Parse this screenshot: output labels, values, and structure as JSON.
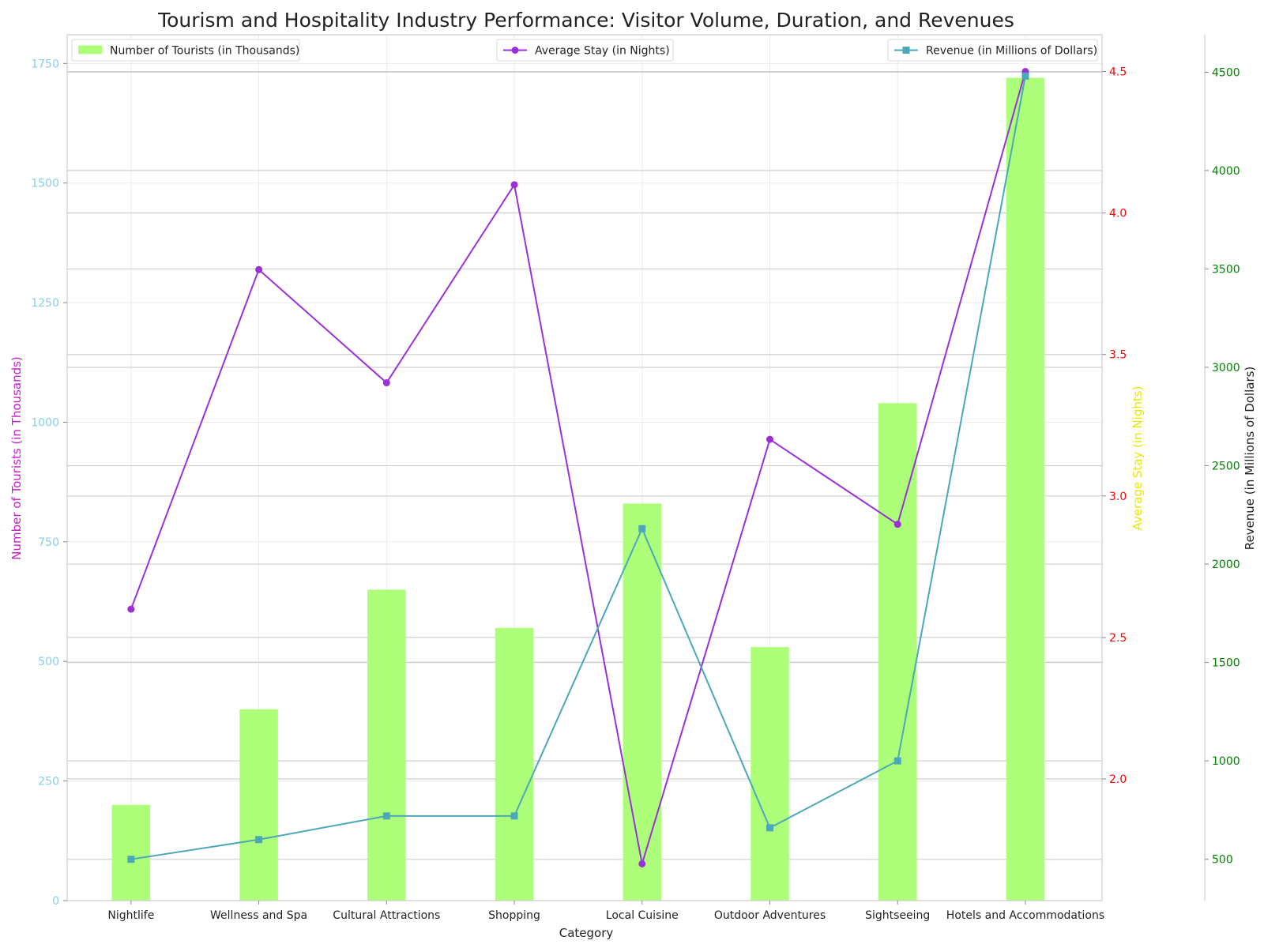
{
  "chart_data": {
    "type": "bar",
    "title": "Tourism and Hospitality Industry Performance: Visitor Volume, Duration, and Revenues",
    "xlabel": "Category",
    "categories": [
      "Nightlife",
      "Wellness and Spa",
      "Cultural Attractions",
      "Shopping",
      "Local Cuisine",
      "Outdoor Adventures",
      "Sightseeing",
      "Hotels and Accommodations"
    ],
    "grid": true,
    "series": [
      {
        "name": "Number of Tourists (in Thousands)",
        "type": "bar",
        "axis": "left",
        "color": "#adff7a",
        "values": [
          200,
          400,
          650,
          570,
          830,
          530,
          1040,
          1720
        ]
      },
      {
        "name": "Average Stay (in Nights)",
        "type": "line",
        "axis": "right",
        "color": "#9b30d9",
        "marker": "circle",
        "values": [
          2.6,
          3.8,
          3.4,
          4.1,
          1.7,
          3.2,
          2.9,
          4.5
        ]
      },
      {
        "name": "Revenue (in Millions of Dollars)",
        "type": "line",
        "axis": "right2",
        "color": "#4aa8b8",
        "marker": "square",
        "values": [
          500,
          600,
          720,
          720,
          2180,
          660,
          1000,
          4480
        ]
      }
    ],
    "axes": {
      "left": {
        "label": "Number of Tourists (in Thousands)",
        "label_color": "#c71ccd",
        "tick_color": "#87ceeb",
        "ylim": [
          0,
          1810
        ],
        "ticks": [
          0,
          250,
          500,
          750,
          1000,
          1250,
          1500,
          1750
        ]
      },
      "right": {
        "label": "Average Stay (in Nights)",
        "label_color": "#e8e800",
        "tick_color": "#ff0000",
        "ylim": [
          1.57,
          4.63
        ],
        "ticks": [
          2.0,
          2.5,
          3.0,
          3.5,
          4.0,
          4.5
        ]
      },
      "right2": {
        "label": "Revenue (in Millions of Dollars)",
        "label_color": "#222222",
        "tick_color": "#008000",
        "ylim": [
          290,
          4690
        ],
        "ticks": [
          500,
          1000,
          1500,
          2000,
          2500,
          3000,
          3500,
          4000,
          4500
        ]
      }
    },
    "legends": [
      {
        "series": "Number of Tourists (in Thousands)",
        "placement": "top-left"
      },
      {
        "series": "Average Stay (in Nights)",
        "placement": "top-center"
      },
      {
        "series": "Revenue (in Millions of Dollars)",
        "placement": "top-right"
      }
    ]
  }
}
